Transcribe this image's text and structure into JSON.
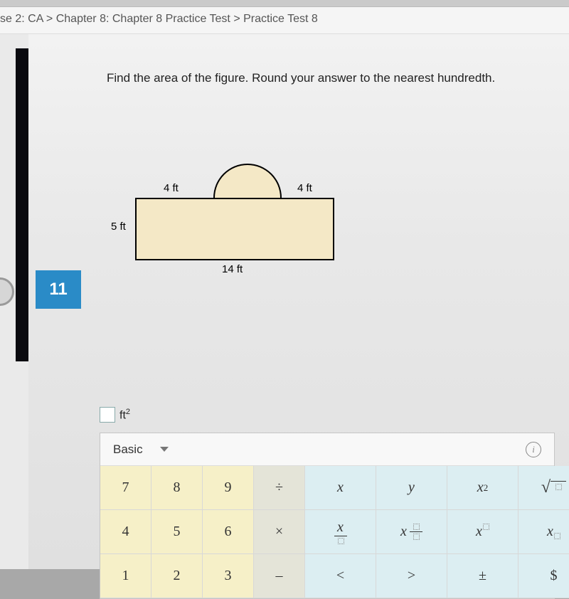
{
  "breadcrumb": "se 2: CA > Chapter 8: Chapter 8 Practice Test > Practice Test 8",
  "question_number": "11",
  "prompt": "Find the area of the figure. Round your answer to the nearest hundredth.",
  "figure": {
    "rectangle": {
      "width_ft": 14,
      "height_ft": 5
    },
    "semicircle_diameter_ft": 6,
    "top_left_segment_label": "4 ft",
    "top_right_segment_label": "4 ft",
    "left_label": "5 ft",
    "bottom_label": "14 ft",
    "fill_color": "#f4e8c6",
    "stroke_color": "#000000"
  },
  "answer": {
    "value": "",
    "unit_html": "ft²",
    "unit": "ft",
    "unit_exp": "2"
  },
  "keypad": {
    "tab_label": "Basic",
    "colors": {
      "num_bg": "#f6f0c8",
      "op_bg": "#e4e4d8",
      "sym_bg": "#dceef2",
      "border": "#d8d8d8"
    },
    "rows": [
      [
        {
          "t": "7",
          "cls": "num"
        },
        {
          "t": "8",
          "cls": "num"
        },
        {
          "t": "9",
          "cls": "num"
        },
        {
          "t": "÷",
          "cls": "op"
        },
        {
          "t": "x",
          "cls": "sym",
          "style": "italic"
        },
        {
          "t": "y",
          "cls": "sym",
          "style": "italic"
        },
        {
          "t": "x2",
          "cls": "sym",
          "render": "x-squared"
        },
        {
          "t": "sqrt",
          "cls": "sym",
          "render": "sqrt"
        }
      ],
      [
        {
          "t": "4",
          "cls": "num"
        },
        {
          "t": "5",
          "cls": "num"
        },
        {
          "t": "6",
          "cls": "num"
        },
        {
          "t": "×",
          "cls": "op"
        },
        {
          "t": "x/□",
          "cls": "sym",
          "render": "frac-x"
        },
        {
          "t": "x □/□",
          "cls": "sym",
          "render": "mixed"
        },
        {
          "t": "x^□",
          "cls": "sym",
          "render": "x-sup"
        },
        {
          "t": "x_□",
          "cls": "sym",
          "render": "x-sub"
        }
      ],
      [
        {
          "t": "1",
          "cls": "num"
        },
        {
          "t": "2",
          "cls": "num"
        },
        {
          "t": "3",
          "cls": "num"
        },
        {
          "t": "–",
          "cls": "op"
        },
        {
          "t": "<",
          "cls": "sym"
        },
        {
          "t": ">",
          "cls": "sym"
        },
        {
          "t": "±",
          "cls": "sym"
        },
        {
          "t": "$",
          "cls": "sym"
        }
      ]
    ]
  }
}
